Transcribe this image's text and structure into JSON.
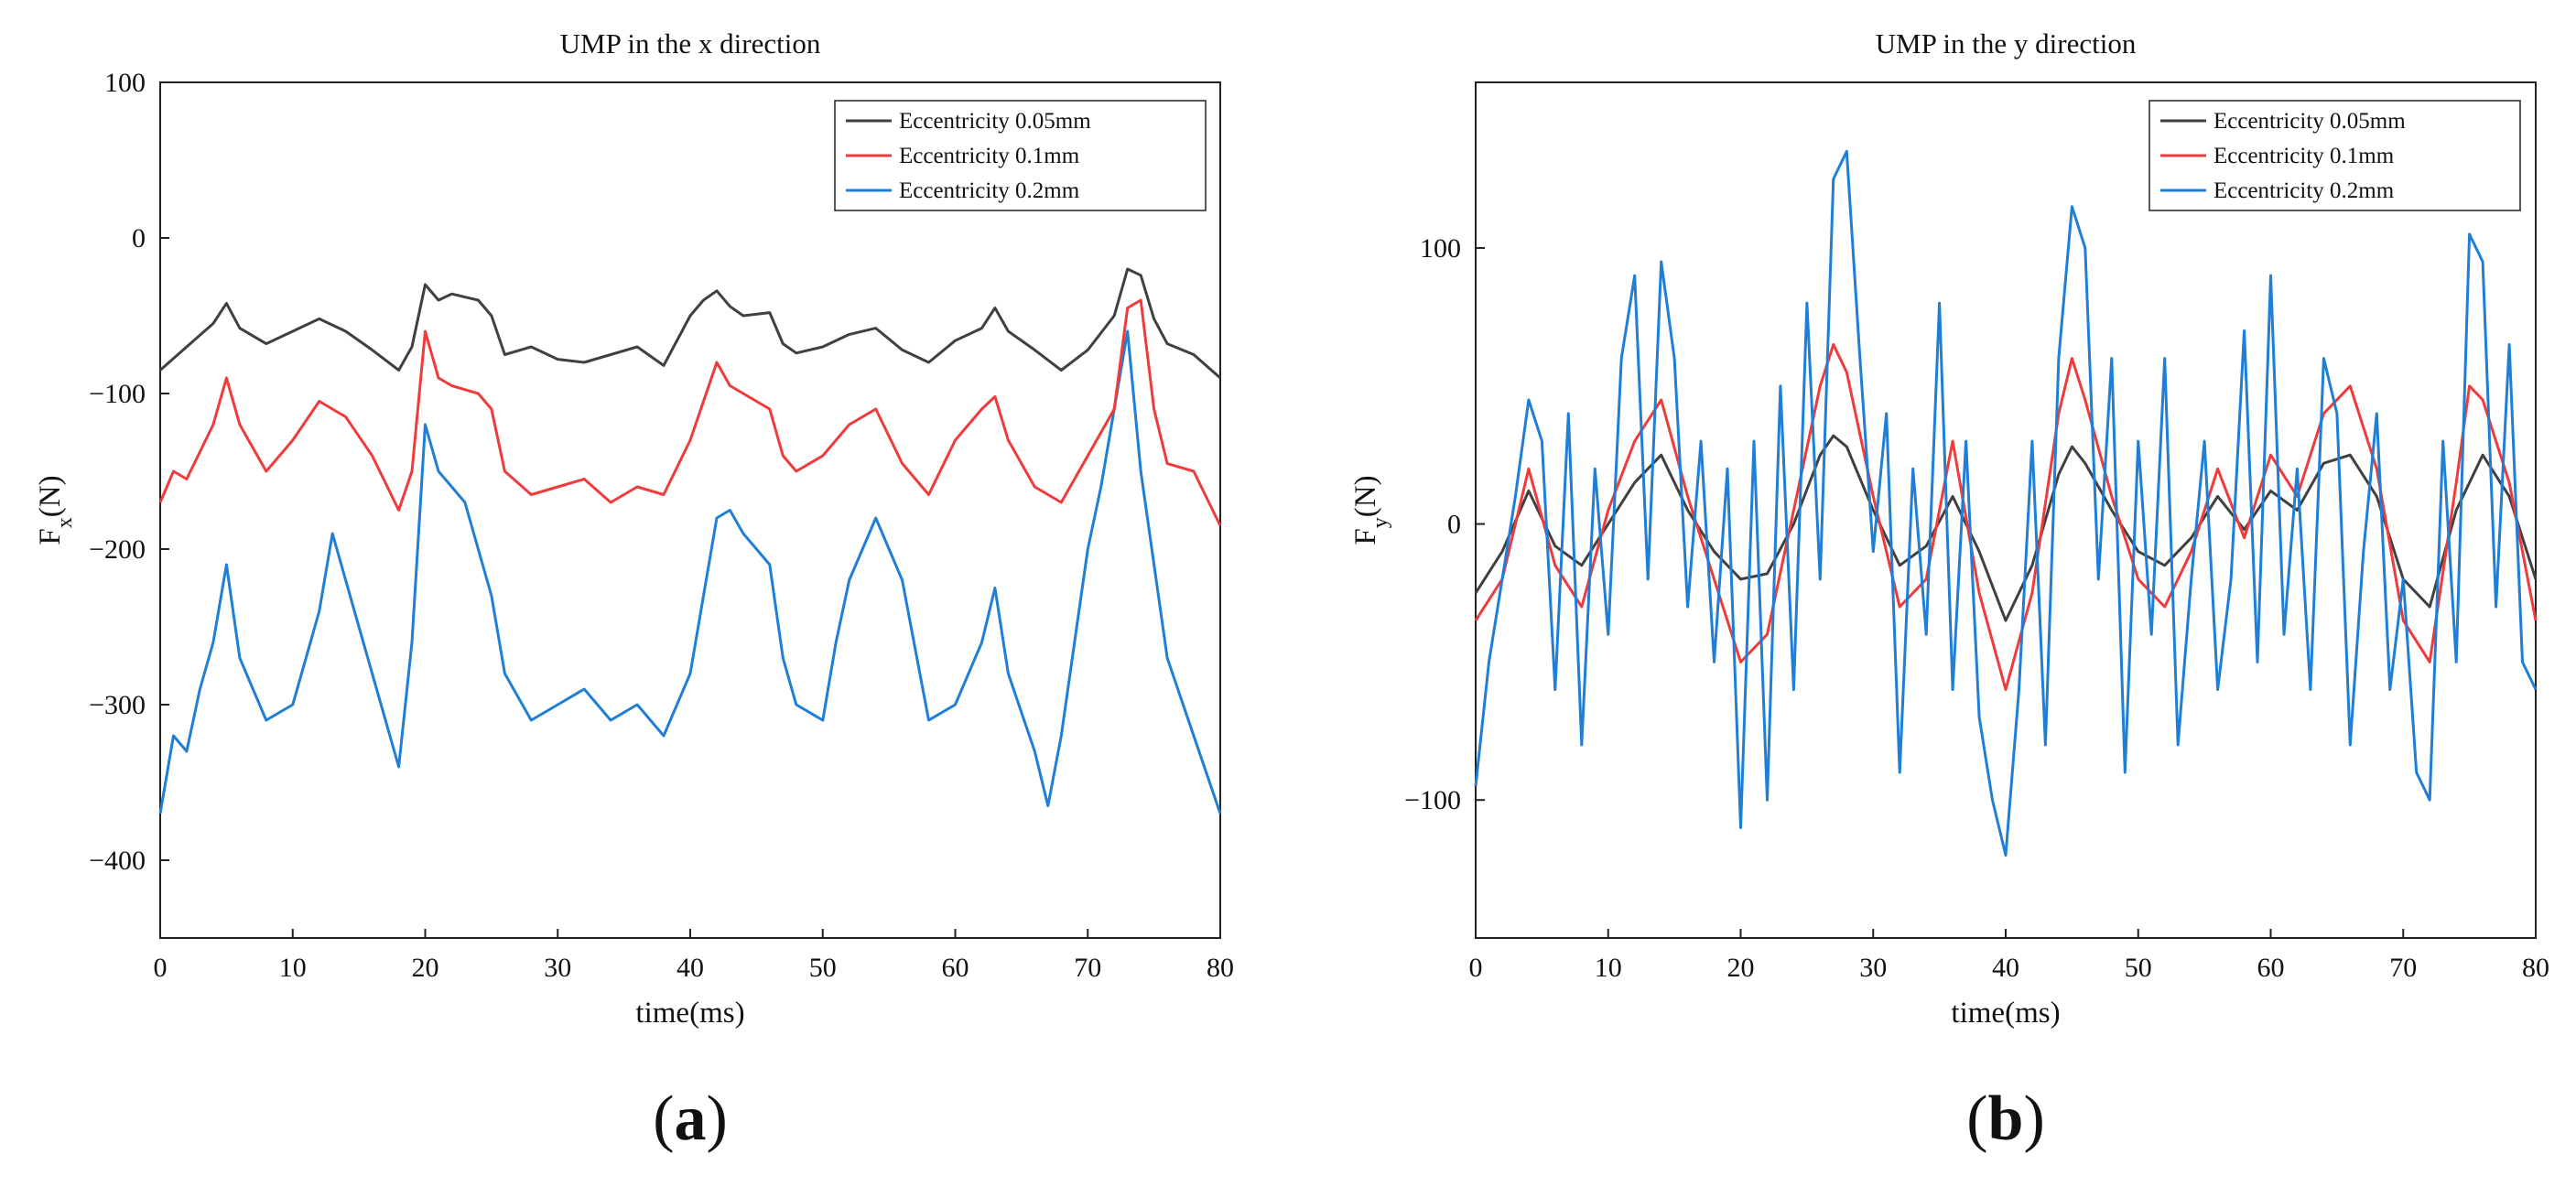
{
  "chart_data": [
    {
      "type": "line",
      "panel_label": "(a)",
      "title": "UMP in the x direction",
      "xlabel": "time(ms)",
      "ylabel_main": "F",
      "ylabel_sub": "x",
      "ylabel_unit": "(N)",
      "xlim": [
        0,
        80
      ],
      "ylim": [
        -450,
        100
      ],
      "xticks": [
        0,
        10,
        20,
        30,
        40,
        50,
        60,
        70,
        80
      ],
      "yticks": [
        100,
        0,
        -100,
        -200,
        -300,
        -400
      ],
      "legend_position": "top-right",
      "series": [
        {
          "name": "Eccentricity 0.05mm",
          "color": "#404040",
          "x": [
            0,
            2,
            4,
            5,
            6,
            8,
            10,
            12,
            14,
            16,
            18,
            19,
            20,
            21,
            22,
            24,
            25,
            26,
            28,
            30,
            32,
            34,
            36,
            38,
            40,
            41,
            42,
            43,
            44,
            46,
            47,
            48,
            50,
            52,
            54,
            56,
            58,
            60,
            62,
            63,
            64,
            66,
            68,
            70,
            72,
            73,
            74,
            75,
            76,
            78,
            80
          ],
          "values": [
            -85,
            -70,
            -55,
            -42,
            -58,
            -68,
            -60,
            -52,
            -60,
            -72,
            -85,
            -70,
            -30,
            -40,
            -36,
            -40,
            -50,
            -75,
            -70,
            -78,
            -80,
            -75,
            -70,
            -82,
            -50,
            -40,
            -34,
            -44,
            -50,
            -48,
            -68,
            -74,
            -70,
            -62,
            -58,
            -72,
            -80,
            -66,
            -58,
            -45,
            -60,
            -72,
            -85,
            -72,
            -50,
            -20,
            -24,
            -52,
            -68,
            -75,
            -90
          ]
        },
        {
          "name": "Eccentricity 0.1mm",
          "color": "#ef3b3b",
          "x": [
            0,
            1,
            2,
            4,
            5,
            6,
            8,
            10,
            12,
            14,
            16,
            18,
            19,
            20,
            21,
            22,
            24,
            25,
            26,
            28,
            30,
            32,
            34,
            36,
            38,
            40,
            41,
            42,
            43,
            44,
            46,
            47,
            48,
            50,
            52,
            54,
            56,
            58,
            60,
            62,
            63,
            64,
            66,
            68,
            70,
            72,
            73,
            74,
            75,
            76,
            78,
            80
          ],
          "values": [
            -170,
            -150,
            -155,
            -120,
            -90,
            -120,
            -150,
            -130,
            -105,
            -115,
            -140,
            -175,
            -150,
            -60,
            -90,
            -95,
            -100,
            -110,
            -150,
            -165,
            -160,
            -155,
            -170,
            -160,
            -165,
            -130,
            -105,
            -80,
            -95,
            -100,
            -110,
            -140,
            -150,
            -140,
            -120,
            -110,
            -145,
            -165,
            -130,
            -110,
            -102,
            -130,
            -160,
            -170,
            -140,
            -110,
            -45,
            -40,
            -110,
            -145,
            -150,
            -185
          ]
        },
        {
          "name": "Eccentricity 0.2mm",
          "color": "#1f7ed6",
          "x": [
            0,
            1,
            2,
            3,
            4,
            5,
            6,
            8,
            10,
            12,
            13,
            14,
            16,
            17,
            18,
            19,
            20,
            21,
            22,
            23,
            24,
            25,
            26,
            28,
            30,
            32,
            34,
            36,
            38,
            40,
            41,
            42,
            43,
            44,
            45,
            46,
            47,
            48,
            50,
            51,
            52,
            54,
            56,
            58,
            60,
            62,
            63,
            64,
            66,
            67,
            68,
            70,
            71,
            72,
            73,
            74,
            76,
            78,
            80
          ],
          "values": [
            -370,
            -320,
            -330,
            -290,
            -260,
            -210,
            -270,
            -310,
            -300,
            -240,
            -190,
            -220,
            -280,
            -310,
            -340,
            -260,
            -120,
            -150,
            -160,
            -170,
            -200,
            -230,
            -280,
            -310,
            -300,
            -290,
            -310,
            -300,
            -320,
            -280,
            -230,
            -180,
            -175,
            -190,
            -200,
            -210,
            -270,
            -300,
            -310,
            -260,
            -220,
            -180,
            -220,
            -310,
            -300,
            -260,
            -225,
            -280,
            -330,
            -365,
            -320,
            -200,
            -160,
            -110,
            -60,
            -150,
            -270,
            -320,
            -370
          ]
        }
      ]
    },
    {
      "type": "line",
      "panel_label": "(b)",
      "title": "UMP in the y direction",
      "xlabel": "time(ms)",
      "ylabel_main": "F",
      "ylabel_sub": "y",
      "ylabel_unit": "(N)",
      "xlim": [
        0,
        80
      ],
      "ylim": [
        -150,
        160
      ],
      "xticks": [
        0,
        10,
        20,
        30,
        40,
        50,
        60,
        70,
        80
      ],
      "yticks": [
        100,
        0,
        -100
      ],
      "legend_position": "top-right",
      "series": [
        {
          "name": "Eccentricity 0.05mm",
          "color": "#404040",
          "x": [
            0,
            2,
            4,
            6,
            8,
            10,
            12,
            14,
            16,
            18,
            20,
            22,
            24,
            26,
            27,
            28,
            30,
            32,
            34,
            36,
            38,
            40,
            42,
            44,
            45,
            46,
            48,
            50,
            52,
            54,
            56,
            58,
            60,
            62,
            64,
            66,
            68,
            70,
            72,
            74,
            76,
            78,
            80
          ],
          "values": [
            -25,
            -10,
            12,
            -8,
            -15,
            0,
            15,
            25,
            5,
            -10,
            -20,
            -18,
            0,
            25,
            32,
            28,
            5,
            -15,
            -8,
            10,
            -10,
            -35,
            -15,
            18,
            28,
            22,
            5,
            -10,
            -15,
            -5,
            10,
            -2,
            12,
            5,
            22,
            25,
            10,
            -20,
            -30,
            5,
            25,
            10,
            -20
          ]
        },
        {
          "name": "Eccentricity 0.1mm",
          "color": "#ef3b3b",
          "x": [
            0,
            2,
            4,
            6,
            8,
            10,
            12,
            14,
            16,
            18,
            20,
            22,
            24,
            26,
            27,
            28,
            30,
            32,
            34,
            36,
            38,
            40,
            42,
            44,
            45,
            46,
            48,
            50,
            52,
            54,
            56,
            58,
            60,
            62,
            64,
            66,
            68,
            70,
            72,
            74,
            75,
            76,
            78,
            80
          ],
          "values": [
            -35,
            -20,
            20,
            -15,
            -30,
            5,
            30,
            45,
            10,
            -20,
            -50,
            -40,
            5,
            50,
            65,
            55,
            10,
            -30,
            -20,
            30,
            -25,
            -60,
            -25,
            40,
            60,
            45,
            10,
            -20,
            -30,
            -10,
            20,
            -5,
            25,
            10,
            40,
            50,
            20,
            -35,
            -50,
            15,
            50,
            45,
            15,
            -35
          ]
        },
        {
          "name": "Eccentricity 0.2mm",
          "color": "#1f7ed6",
          "x": [
            0,
            1,
            2,
            3,
            4,
            5,
            6,
            7,
            8,
            9,
            10,
            11,
            12,
            13,
            14,
            15,
            16,
            17,
            18,
            19,
            20,
            21,
            22,
            23,
            24,
            25,
            26,
            27,
            28,
            29,
            30,
            31,
            32,
            33,
            34,
            35,
            36,
            37,
            38,
            39,
            40,
            41,
            42,
            43,
            44,
            45,
            46,
            47,
            48,
            49,
            50,
            51,
            52,
            53,
            54,
            55,
            56,
            57,
            58,
            59,
            60,
            61,
            62,
            63,
            64,
            65,
            66,
            67,
            68,
            69,
            70,
            71,
            72,
            73,
            74,
            75,
            76,
            77,
            78,
            79,
            80
          ],
          "values": [
            -95,
            -50,
            -20,
            10,
            45,
            30,
            -60,
            40,
            -80,
            20,
            -40,
            60,
            90,
            -20,
            95,
            60,
            -30,
            30,
            -50,
            20,
            -110,
            30,
            -100,
            50,
            -60,
            80,
            -20,
            125,
            135,
            60,
            -10,
            40,
            -90,
            20,
            -40,
            80,
            -60,
            30,
            -70,
            -100,
            -120,
            -60,
            30,
            -80,
            60,
            115,
            100,
            -20,
            60,
            -90,
            30,
            -40,
            60,
            -80,
            -20,
            30,
            -60,
            -20,
            70,
            -50,
            90,
            -40,
            20,
            -60,
            60,
            40,
            -80,
            -10,
            40,
            -60,
            -20,
            -90,
            -100,
            30,
            -50,
            105,
            95,
            -30,
            65,
            -50,
            -60
          ]
        }
      ]
    }
  ]
}
